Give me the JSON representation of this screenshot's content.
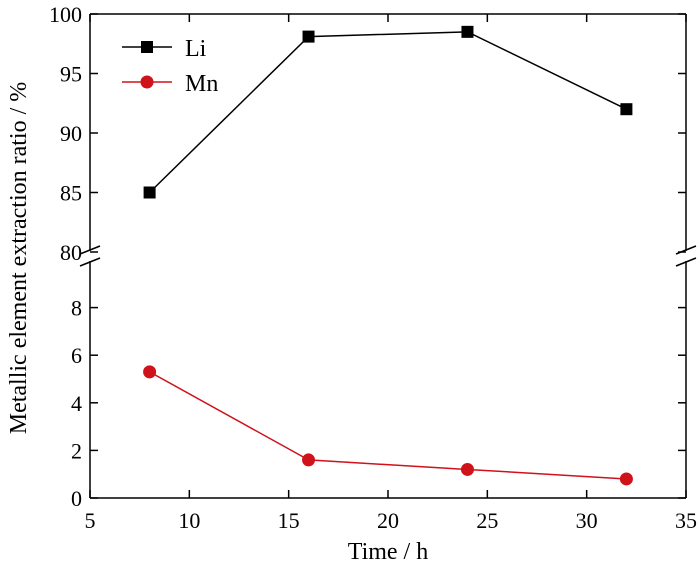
{
  "chart_data": {
    "type": "line",
    "xlabel": "Time / h",
    "ylabel": "Metallic element extraction ratio / %",
    "xlim": [
      5,
      35
    ],
    "x_ticks": [
      5,
      10,
      15,
      20,
      25,
      30,
      35
    ],
    "y_axis_break": true,
    "ylim_upper": [
      80,
      100
    ],
    "y_ticks_upper": [
      80,
      85,
      90,
      95,
      100
    ],
    "ylim_lower": [
      0,
      10
    ],
    "y_ticks_lower": [
      0,
      2,
      4,
      6,
      8
    ],
    "grid": false,
    "legend_position": "top-left",
    "series": [
      {
        "name": "Li",
        "marker": "square",
        "color": "#000000",
        "x": [
          8,
          16,
          24,
          32
        ],
        "y": [
          85.0,
          98.1,
          98.5,
          92.0
        ]
      },
      {
        "name": "Mn",
        "marker": "circle",
        "color": "#d0121b",
        "x": [
          8,
          16,
          24,
          32
        ],
        "y": [
          5.3,
          1.6,
          1.2,
          0.8
        ]
      }
    ]
  }
}
